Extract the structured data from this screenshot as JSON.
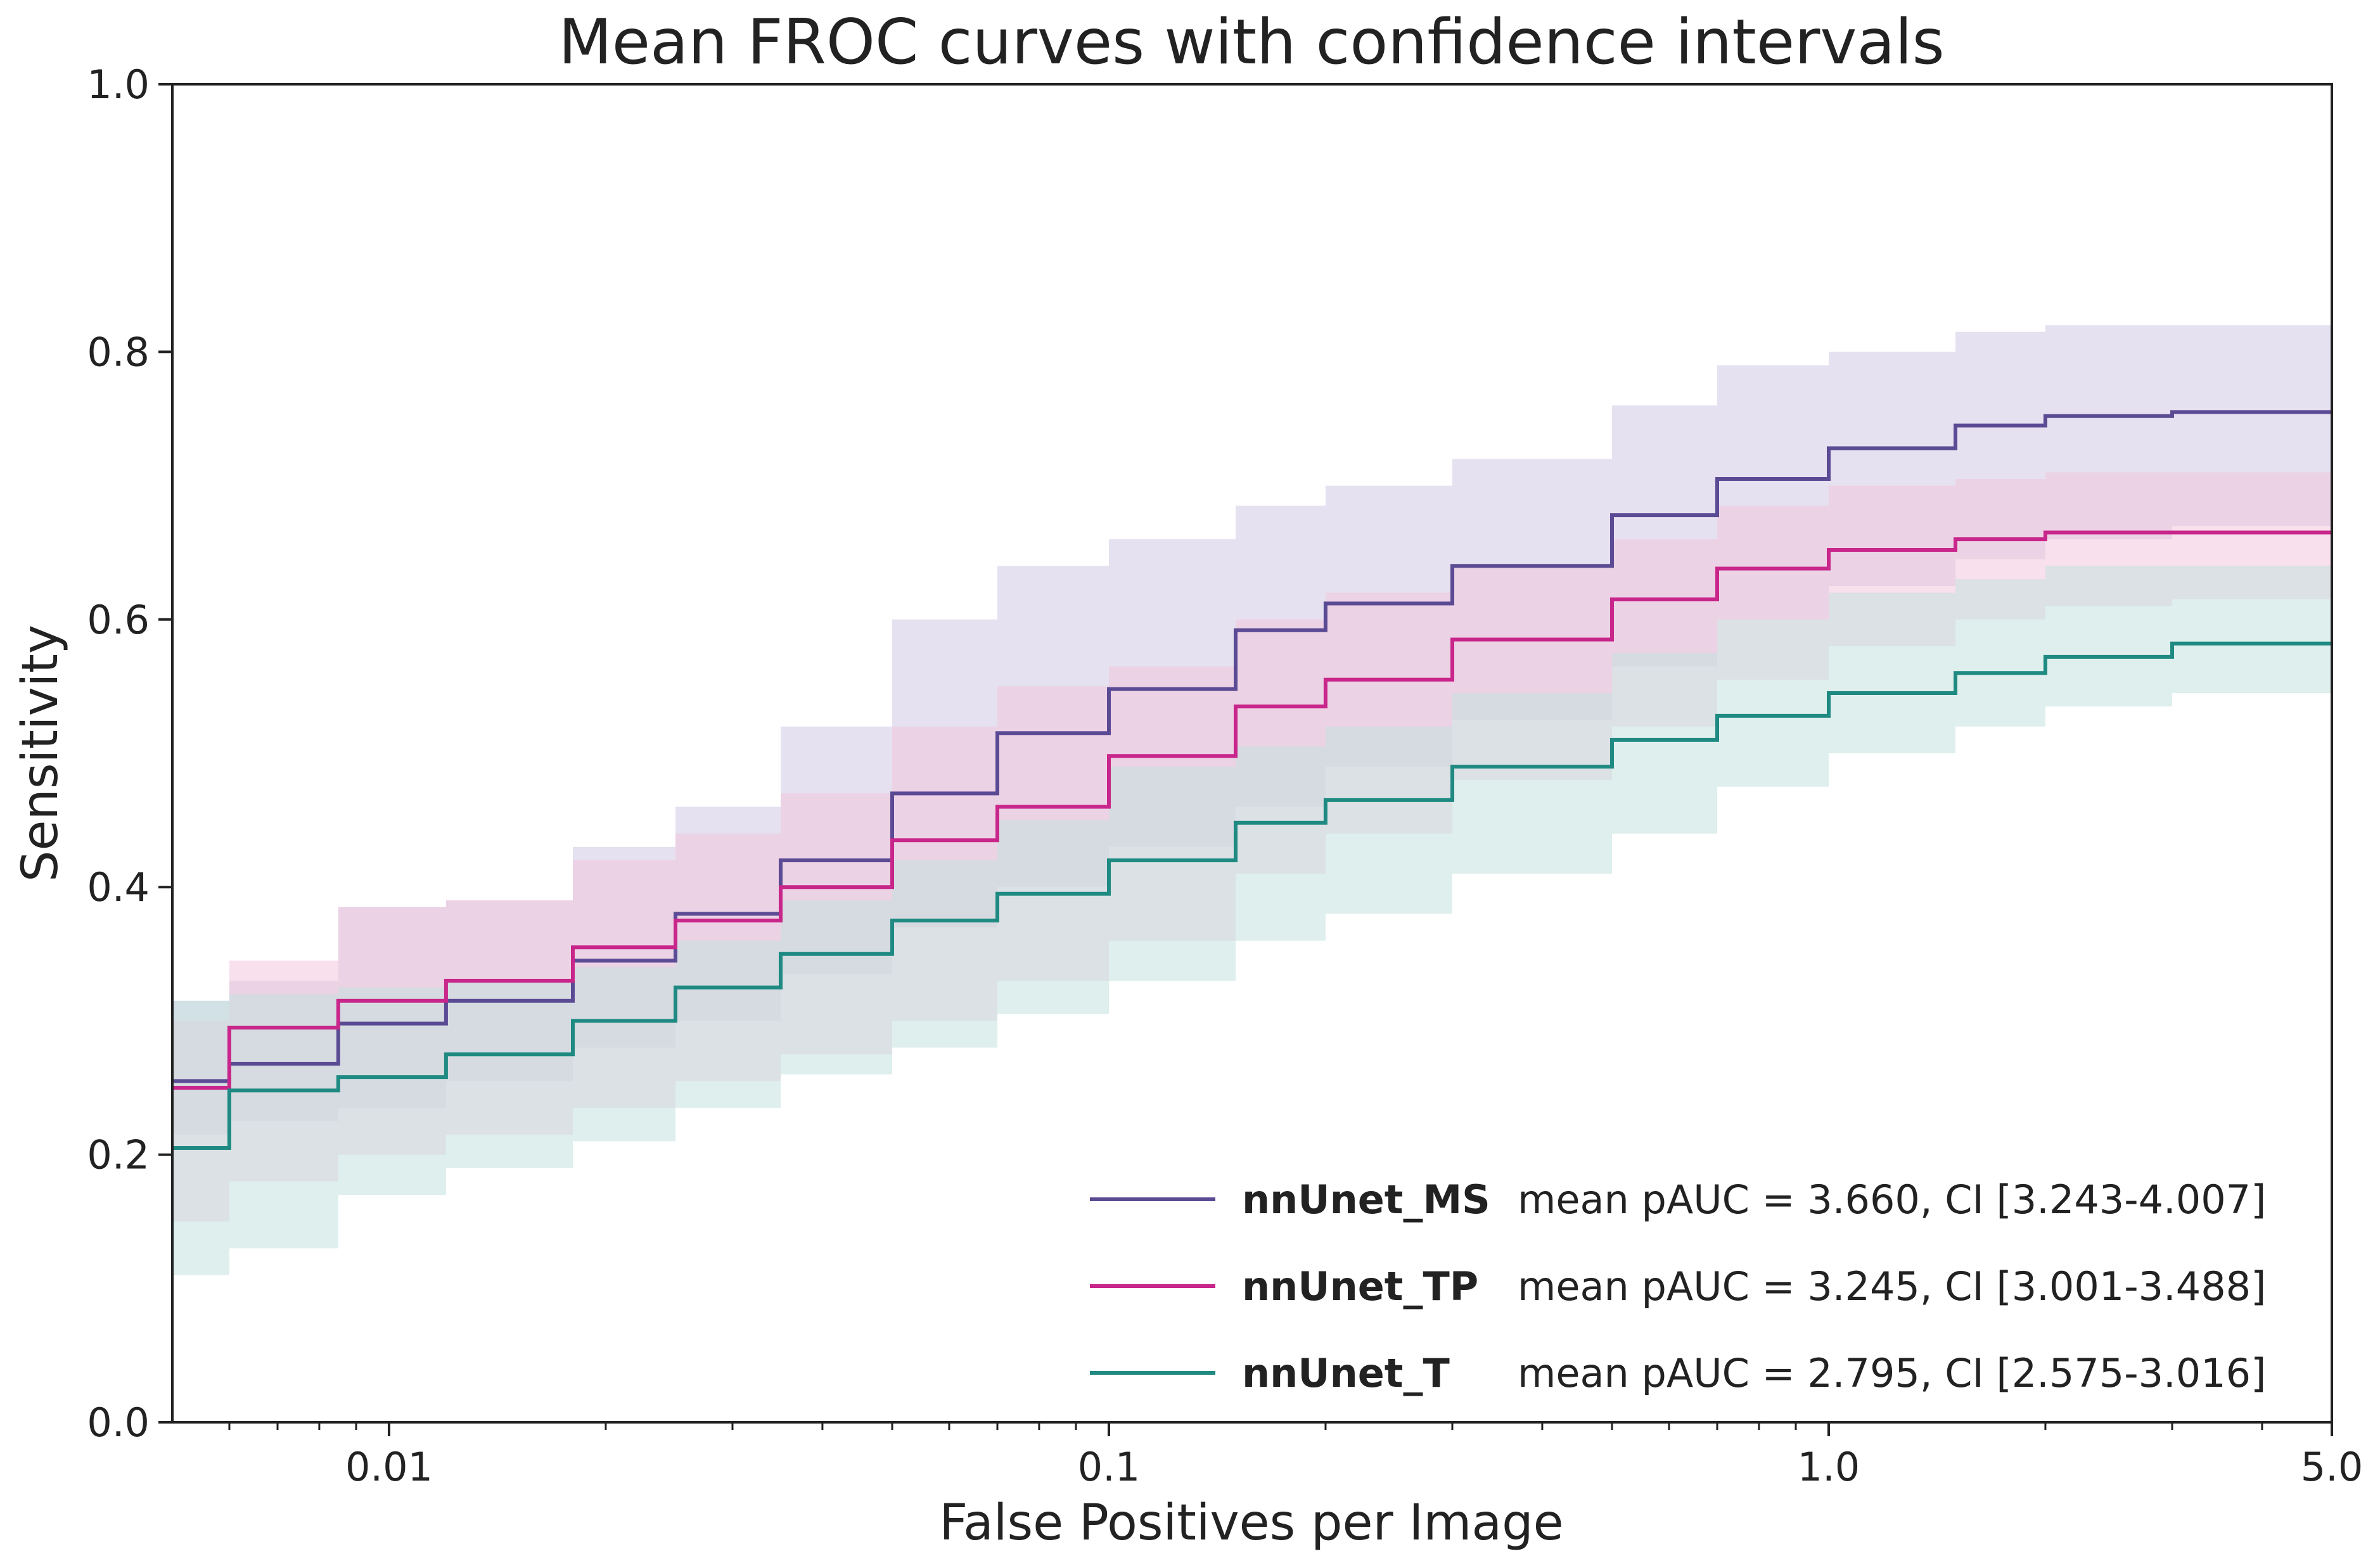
{
  "chart_data": {
    "type": "line",
    "title": "Mean FROC curves with confidence intervals",
    "xlabel": "False Positives per Image",
    "ylabel": "Sensitivity",
    "xscale": "log",
    "xlim": [
      0.005,
      5.0
    ],
    "ylim": [
      0.0,
      1.0
    ],
    "x_ticks": [
      {
        "value": 0.01,
        "label": "0.01"
      },
      {
        "value": 0.1,
        "label": "0.1"
      },
      {
        "value": 1.0,
        "label": "1.0"
      },
      {
        "value": 5.0,
        "label": "5.0"
      }
    ],
    "y_ticks": [
      {
        "value": 0.0,
        "label": "0.0"
      },
      {
        "value": 0.2,
        "label": "0.2"
      },
      {
        "value": 0.4,
        "label": "0.4"
      },
      {
        "value": 0.6,
        "label": "0.6"
      },
      {
        "value": 0.8,
        "label": "0.8"
      },
      {
        "value": 1.0,
        "label": "1.0"
      }
    ],
    "grid": false,
    "legend_position": "bottom-right",
    "series": [
      {
        "name": "nnUnet_MS",
        "legend_text": "mean pAUC = 3.660, CI [3.243-4.007]",
        "color": "#5b4a94",
        "fill_color": "#cfc8e3",
        "x": [
          0.005,
          0.006,
          0.0085,
          0.012,
          0.018,
          0.025,
          0.035,
          0.05,
          0.07,
          0.1,
          0.15,
          0.2,
          0.3,
          0.5,
          0.7,
          1.0,
          1.5,
          2.0,
          3.0,
          5.0
        ],
        "y": [
          0.255,
          0.268,
          0.298,
          0.315,
          0.345,
          0.38,
          0.42,
          0.47,
          0.515,
          0.548,
          0.592,
          0.612,
          0.64,
          0.678,
          0.705,
          0.728,
          0.745,
          0.752,
          0.755,
          0.755
        ],
        "lower": [
          0.215,
          0.225,
          0.235,
          0.255,
          0.28,
          0.3,
          0.335,
          0.37,
          0.4,
          0.43,
          0.46,
          0.49,
          0.525,
          0.565,
          0.6,
          0.625,
          0.645,
          0.66,
          0.67,
          0.67
        ],
        "upper": [
          0.315,
          0.33,
          0.385,
          0.39,
          0.43,
          0.46,
          0.52,
          0.6,
          0.64,
          0.66,
          0.685,
          0.7,
          0.72,
          0.76,
          0.79,
          0.8,
          0.815,
          0.82,
          0.82,
          0.82
        ]
      },
      {
        "name": "nnUnet_TP",
        "legend_text": "mean pAUC = 3.245, CI [3.001-3.488]",
        "color": "#c8268a",
        "fill_color": "#f3c6dc",
        "x": [
          0.005,
          0.006,
          0.0085,
          0.012,
          0.018,
          0.025,
          0.035,
          0.05,
          0.07,
          0.1,
          0.15,
          0.2,
          0.3,
          0.5,
          0.7,
          1.0,
          1.5,
          2.0,
          3.0,
          5.0
        ],
        "y": [
          0.25,
          0.295,
          0.315,
          0.33,
          0.355,
          0.375,
          0.4,
          0.435,
          0.46,
          0.498,
          0.535,
          0.555,
          0.585,
          0.615,
          0.638,
          0.652,
          0.66,
          0.665,
          0.665,
          0.665
        ],
        "lower": [
          0.15,
          0.18,
          0.2,
          0.215,
          0.235,
          0.255,
          0.275,
          0.3,
          0.33,
          0.36,
          0.41,
          0.44,
          0.48,
          0.52,
          0.555,
          0.58,
          0.6,
          0.61,
          0.615,
          0.615
        ],
        "upper": [
          0.3,
          0.345,
          0.385,
          0.39,
          0.42,
          0.44,
          0.47,
          0.52,
          0.55,
          0.565,
          0.6,
          0.62,
          0.64,
          0.66,
          0.685,
          0.7,
          0.705,
          0.71,
          0.71,
          0.71
        ]
      },
      {
        "name": "nnUnet_T",
        "legend_text": "mean pAUC = 2.795, CI [2.575-3.016]",
        "color": "#1f8a82",
        "fill_color": "#c2e2de",
        "x": [
          0.005,
          0.006,
          0.0085,
          0.012,
          0.018,
          0.025,
          0.035,
          0.05,
          0.07,
          0.1,
          0.15,
          0.2,
          0.3,
          0.5,
          0.7,
          1.0,
          1.5,
          2.0,
          3.0,
          5.0
        ],
        "y": [
          0.205,
          0.248,
          0.258,
          0.275,
          0.3,
          0.325,
          0.35,
          0.375,
          0.395,
          0.42,
          0.448,
          0.465,
          0.49,
          0.51,
          0.528,
          0.545,
          0.56,
          0.572,
          0.582,
          0.582
        ],
        "lower": [
          0.11,
          0.13,
          0.17,
          0.19,
          0.21,
          0.235,
          0.26,
          0.28,
          0.305,
          0.33,
          0.36,
          0.38,
          0.41,
          0.44,
          0.475,
          0.5,
          0.52,
          0.535,
          0.545,
          0.545
        ],
        "upper": [
          0.315,
          0.32,
          0.325,
          0.33,
          0.34,
          0.36,
          0.39,
          0.42,
          0.45,
          0.49,
          0.505,
          0.52,
          0.545,
          0.575,
          0.6,
          0.62,
          0.63,
          0.64,
          0.64,
          0.64
        ]
      }
    ]
  }
}
